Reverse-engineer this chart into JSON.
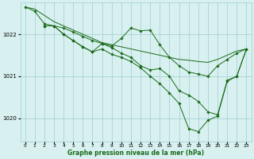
{
  "background_color": "#d8f0f0",
  "plot_bg_color": "#d8f0f0",
  "grid_color": "#9ecece",
  "line_color": "#1a6b1a",
  "marker_color": "#1a6b1a",
  "title": "Graphe pression niveau de la mer (hPa)",
  "ylabel_ticks": [
    1020,
    1021,
    1022
  ],
  "ylim": [
    1019.45,
    1022.75
  ],
  "xlim": [
    -0.5,
    23.5
  ],
  "xticks": [
    0,
    1,
    2,
    3,
    4,
    5,
    6,
    7,
    8,
    9,
    10,
    11,
    12,
    13,
    14,
    15,
    16,
    17,
    18,
    19,
    20,
    21,
    22,
    23
  ],
  "series": [
    {
      "x": [
        0,
        1,
        2,
        3,
        4,
        5,
        6,
        7,
        8,
        9,
        10,
        11,
        12,
        13,
        14,
        15,
        16,
        17,
        18,
        19,
        20,
        21,
        22,
        23
      ],
      "y": [
        1022.65,
        1022.6,
        1022.45,
        1022.3,
        1022.2,
        1022.1,
        1022.0,
        1021.9,
        1021.8,
        1021.75,
        1021.7,
        1021.65,
        1021.6,
        1021.55,
        1021.5,
        1021.45,
        1021.4,
        1021.38,
        1021.35,
        1021.33,
        1021.4,
        1021.5,
        1021.6,
        1021.65
      ],
      "has_markers": false
    },
    {
      "x": [
        0,
        1,
        2,
        3,
        4,
        5,
        6,
        7,
        8,
        9,
        10,
        11,
        12,
        13,
        14,
        15,
        16,
        17,
        18,
        19,
        20,
        21,
        22,
        23
      ],
      "y": [
        1022.65,
        1022.55,
        1022.25,
        1022.2,
        1022.15,
        1022.05,
        1021.95,
        1021.85,
        1021.78,
        1021.72,
        1021.9,
        1022.15,
        1022.08,
        1022.1,
        1021.75,
        1021.45,
        1021.25,
        1021.1,
        1021.05,
        1021.0,
        1021.25,
        1021.4,
        1021.55,
        1021.65
      ],
      "has_markers": true
    },
    {
      "x": [
        2,
        3,
        4,
        5,
        6,
        7,
        8,
        9,
        10,
        11,
        12,
        13,
        14,
        15,
        16,
        17,
        18,
        19,
        20,
        21,
        22,
        23
      ],
      "y": [
        1022.2,
        1022.2,
        1022.0,
        1021.85,
        1021.7,
        1021.58,
        1021.65,
        1021.52,
        1021.45,
        1021.35,
        1021.2,
        1021.0,
        1020.82,
        1020.6,
        1020.35,
        1019.75,
        1019.68,
        1019.95,
        1020.05,
        1020.88,
        1021.0,
        1021.65
      ],
      "has_markers": true
    },
    {
      "x": [
        2,
        3,
        4,
        5,
        6,
        7,
        8,
        9,
        10,
        11,
        12,
        13,
        14,
        15,
        16,
        17,
        18,
        19,
        20,
        21,
        22,
        23
      ],
      "y": [
        1022.2,
        1022.2,
        1022.0,
        1021.85,
        1021.7,
        1021.58,
        1021.78,
        1021.68,
        1021.55,
        1021.45,
        1021.25,
        1021.15,
        1021.18,
        1021.0,
        1020.65,
        1020.55,
        1020.4,
        1020.15,
        1020.08,
        1020.9,
        1021.0,
        1021.65
      ],
      "has_markers": true
    }
  ]
}
